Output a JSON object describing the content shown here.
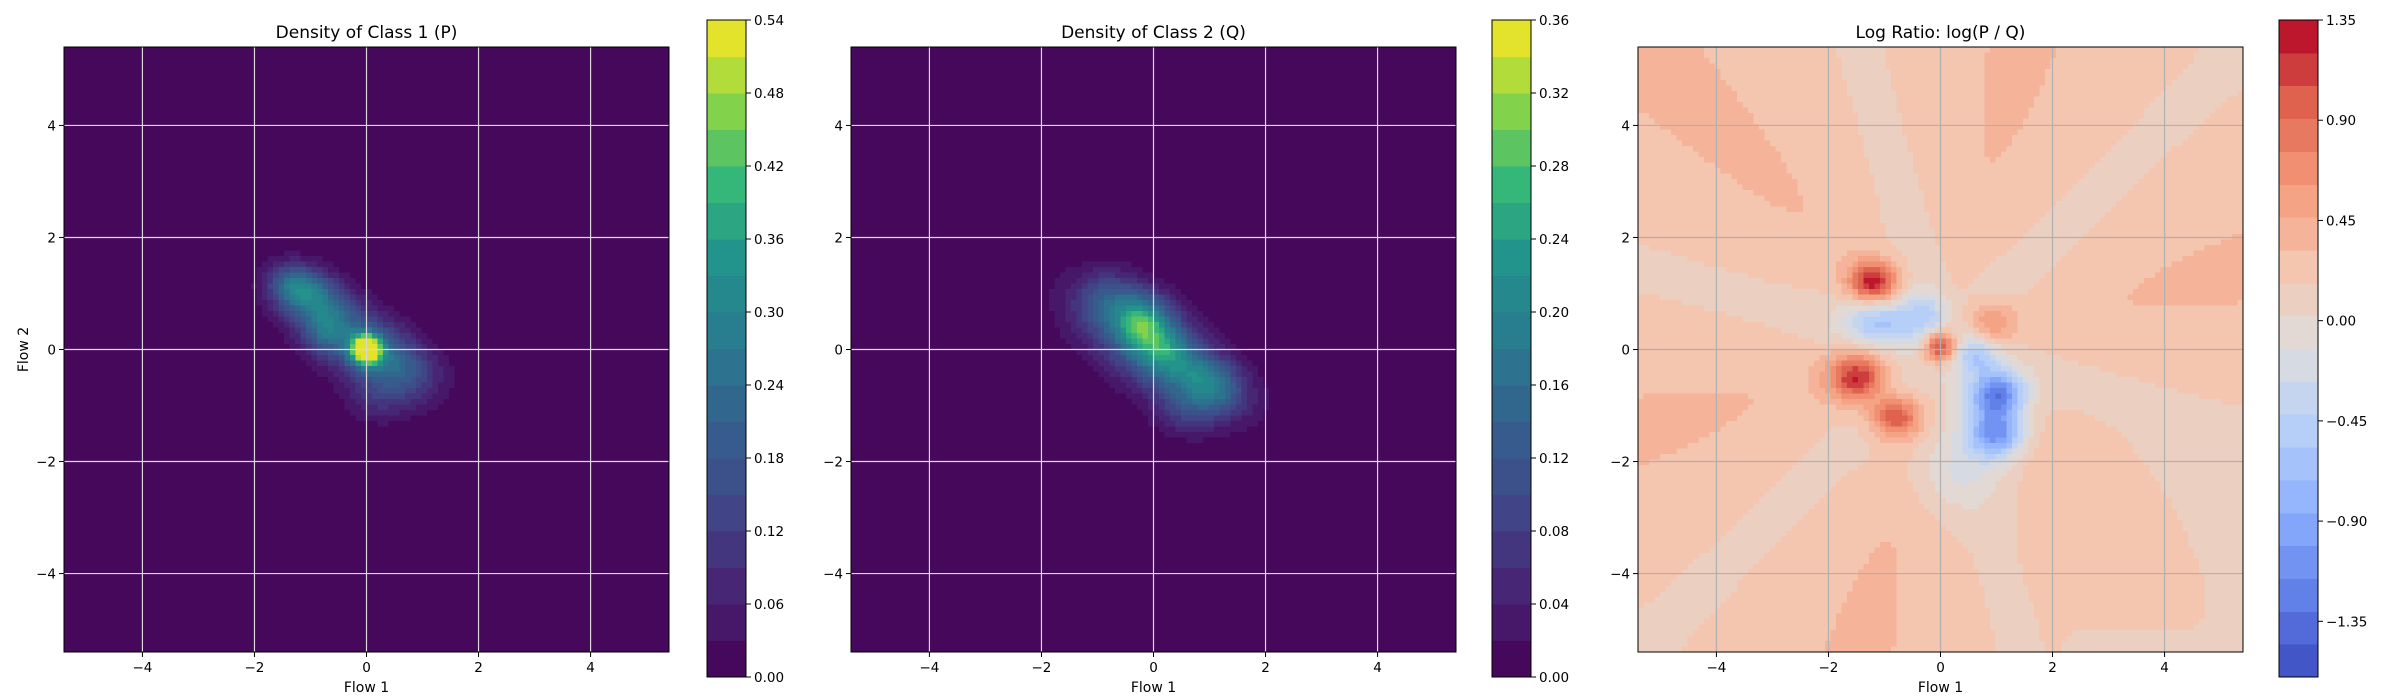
{
  "chart_data": [
    {
      "type": "heatmap",
      "title": "Density of Class 1 (P)",
      "xlabel": "Flow 1",
      "ylabel": "Flow 2",
      "xlim": [
        -5.4,
        5.4
      ],
      "ylim": [
        -5.4,
        5.4
      ],
      "xticks": [
        "−4",
        "−2",
        "0",
        "2",
        "4"
      ],
      "xtick_values": [
        -4,
        -2,
        0,
        2,
        4
      ],
      "yticks": [
        "−4",
        "−2",
        "0",
        "2",
        "4"
      ],
      "ytick_values": [
        -4,
        -2,
        0,
        2,
        4
      ],
      "grid": true,
      "colormap": "viridis",
      "colorbar": {
        "range": [
          0,
          0.54
        ],
        "ticks": [
          "0.00",
          "0.06",
          "0.12",
          "0.18",
          "0.24",
          "0.30",
          "0.36",
          "0.42",
          "0.48",
          "0.54"
        ],
        "tick_values": [
          0,
          0.06,
          0.12,
          0.18,
          0.24,
          0.3,
          0.36,
          0.42,
          0.48,
          0.54
        ],
        "levels": 18
      },
      "density_blobs": [
        {
          "x": 0.0,
          "y": 0.0,
          "sx": 0.18,
          "sy": 0.18,
          "rho": 0.0,
          "peak": 0.54
        },
        {
          "x": -0.2,
          "y": 0.15,
          "sx": 0.7,
          "sy": 0.55,
          "rho": -0.5,
          "peak": 0.2
        },
        {
          "x": -1.0,
          "y": 0.95,
          "sx": 0.45,
          "sy": 0.35,
          "rho": -0.3,
          "peak": 0.22
        },
        {
          "x": -1.3,
          "y": 1.15,
          "sx": 0.3,
          "sy": 0.25,
          "rho": 0.0,
          "peak": 0.12
        },
        {
          "x": -0.75,
          "y": 0.3,
          "sx": 0.25,
          "sy": 0.25,
          "rho": 0.0,
          "peak": 0.1
        },
        {
          "x": 0.6,
          "y": -0.3,
          "sx": 0.5,
          "sy": 0.4,
          "rho": -0.3,
          "peak": 0.13
        },
        {
          "x": 0.2,
          "y": -0.9,
          "sx": 0.4,
          "sy": 0.3,
          "rho": 0.0,
          "peak": 0.07
        }
      ]
    },
    {
      "type": "heatmap",
      "title": "Density of Class 2 (Q)",
      "xlabel": "Flow 1",
      "ylabel": "",
      "xlim": [
        -5.4,
        5.4
      ],
      "ylim": [
        -5.4,
        5.4
      ],
      "xticks": [
        "−4",
        "−2",
        "0",
        "2",
        "4"
      ],
      "xtick_values": [
        -4,
        -2,
        0,
        2,
        4
      ],
      "yticks": [
        "−4",
        "−2",
        "0",
        "2",
        "4"
      ],
      "ytick_values": [
        -4,
        -2,
        0,
        2,
        4
      ],
      "grid": true,
      "colormap": "viridis",
      "colorbar": {
        "range": [
          0,
          0.36
        ],
        "ticks": [
          "0.00",
          "0.04",
          "0.08",
          "0.12",
          "0.16",
          "0.20",
          "0.24",
          "0.28",
          "0.32",
          "0.36"
        ],
        "tick_values": [
          0,
          0.04,
          0.08,
          0.12,
          0.16,
          0.2,
          0.24,
          0.28,
          0.32,
          0.36
        ],
        "levels": 18
      },
      "density_blobs": [
        {
          "x": 0.0,
          "y": 0.0,
          "sx": 0.9,
          "sy": 0.7,
          "rho": -0.6,
          "peak": 0.14
        },
        {
          "x": -0.2,
          "y": 0.5,
          "sx": 0.35,
          "sy": 0.35,
          "rho": 0.0,
          "peak": 0.16
        },
        {
          "x": 0.2,
          "y": 0.0,
          "sx": 0.35,
          "sy": 0.35,
          "rho": 0.0,
          "peak": 0.09
        },
        {
          "x": 1.0,
          "y": -0.6,
          "sx": 0.45,
          "sy": 0.35,
          "rho": -0.3,
          "peak": 0.13
        },
        {
          "x": -0.8,
          "y": 0.9,
          "sx": 0.4,
          "sy": 0.35,
          "rho": 0.0,
          "peak": 0.08
        },
        {
          "x": 0.6,
          "y": -1.1,
          "sx": 0.4,
          "sy": 0.3,
          "rho": 0.0,
          "peak": 0.06
        }
      ]
    },
    {
      "type": "heatmap",
      "title": "Log Ratio: log(P / Q)",
      "xlabel": "Flow 1",
      "ylabel": "",
      "xlim": [
        -5.4,
        5.4
      ],
      "ylim": [
        -5.4,
        5.4
      ],
      "xticks": [
        "−4",
        "−2",
        "0",
        "2",
        "4"
      ],
      "xtick_values": [
        -4,
        -2,
        0,
        2,
        4
      ],
      "yticks": [
        "−4",
        "−2",
        "0",
        "2",
        "4"
      ],
      "ytick_values": [
        -4,
        -2,
        0,
        2,
        4
      ],
      "grid": true,
      "colormap": "coolwarm",
      "colorbar": {
        "range": [
          -1.6,
          1.35
        ],
        "ticks": [
          "−1.35",
          "−0.90",
          "−0.45",
          "0.00",
          "0.45",
          "0.90",
          "1.35"
        ],
        "tick_values": [
          -1.35,
          -0.9,
          -0.45,
          0.0,
          0.45,
          0.9,
          1.35
        ],
        "levels": 20
      },
      "ratio_blobs": [
        {
          "x": -1.2,
          "y": 1.2,
          "sx": 0.3,
          "sy": 0.25,
          "amp": 1.1
        },
        {
          "x": -1.5,
          "y": -0.5,
          "sx": 0.35,
          "sy": 0.3,
          "amp": 1.0
        },
        {
          "x": -0.8,
          "y": -1.2,
          "sx": 0.3,
          "sy": 0.25,
          "amp": 0.9
        },
        {
          "x": 0.0,
          "y": 0.05,
          "sx": 0.2,
          "sy": 0.2,
          "amp": 1.2
        },
        {
          "x": 0.9,
          "y": 0.5,
          "sx": 0.3,
          "sy": 0.25,
          "amp": 0.5
        },
        {
          "x": 1.0,
          "y": -0.8,
          "sx": 0.35,
          "sy": 0.3,
          "amp": -1.4
        },
        {
          "x": 1.0,
          "y": -1.5,
          "sx": 0.35,
          "sy": 0.3,
          "amp": -1.2
        },
        {
          "x": -1.1,
          "y": 0.5,
          "sx": 0.45,
          "sy": 0.3,
          "amp": -0.7
        },
        {
          "x": -0.3,
          "y": 0.6,
          "sx": 0.3,
          "sy": 0.3,
          "amp": -0.5
        },
        {
          "x": 0.6,
          "y": -0.1,
          "sx": 0.3,
          "sy": 0.25,
          "amp": -0.6
        },
        {
          "x": 0.3,
          "y": -2.2,
          "sx": 0.6,
          "sy": 0.5,
          "amp": -0.3
        }
      ]
    }
  ]
}
